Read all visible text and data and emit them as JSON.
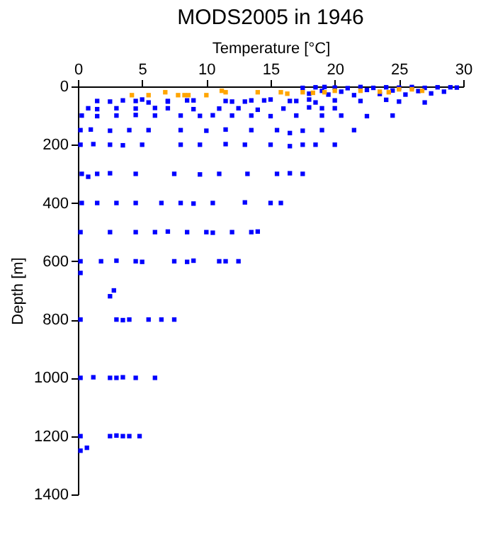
{
  "chart_data": {
    "type": "scatter",
    "title": "MODS2005 in 1946",
    "xlabel": "Temperature [°C]",
    "ylabel": "Depth [m]",
    "xlim": [
      0,
      30
    ],
    "xticks": [
      0,
      5,
      10,
      15,
      20,
      25,
      30
    ],
    "ylim": [
      1400,
      0
    ],
    "yticks": [
      0,
      200,
      400,
      600,
      800,
      1000,
      1200,
      1400
    ],
    "grid": false,
    "legend": false,
    "marker": "square",
    "series": [
      {
        "color": "#0000ff",
        "x": [
          17.5,
          18.5,
          19.2,
          20,
          21,
          22,
          23,
          24,
          25,
          26,
          27,
          28,
          29,
          29.5,
          19,
          20.5,
          22.5,
          24.5,
          26.5,
          28.5,
          18,
          19.5,
          21.5,
          23.5,
          25.5,
          27.5,
          5,
          7,
          9,
          12,
          13.5,
          15,
          17,
          18,
          20,
          22,
          24,
          25,
          27,
          1.5,
          2.5,
          3.5,
          4.5,
          5.5,
          7,
          8.5,
          11.5,
          13,
          14.5,
          16.5,
          18.5,
          0.8,
          1.5,
          3,
          4.5,
          6,
          7,
          9,
          11,
          12.5,
          14,
          16,
          18,
          19,
          20,
          0.3,
          1.5,
          3,
          4.5,
          6,
          8,
          9.5,
          10.5,
          12,
          13.5,
          15,
          17,
          19,
          20.5,
          22.5,
          24.5,
          0.2,
          1,
          2.5,
          4,
          5.5,
          8,
          10,
          11.5,
          13.5,
          15.5,
          16.5,
          17.5,
          19,
          21.5,
          0.2,
          1.2,
          2.5,
          3.5,
          5,
          8,
          9.5,
          11.5,
          13,
          15,
          16.5,
          17.5,
          18.5,
          20,
          0.3,
          0.8,
          1.5,
          2.5,
          4.5,
          7.5,
          9.5,
          11,
          13.2,
          15.5,
          16.5,
          17.5,
          0.3,
          1.5,
          3,
          4.5,
          6.5,
          8,
          9,
          10.5,
          13,
          15,
          15.8,
          0.2,
          2.5,
          4.5,
          6,
          7,
          8.5,
          10,
          10.5,
          12,
          13.5,
          14,
          0.2,
          1.8,
          3,
          4.5,
          5,
          7.5,
          8.5,
          9,
          11,
          11.5,
          12.5,
          0.2,
          2.5,
          2.8,
          0.2,
          3,
          3.5,
          4,
          5.5,
          6.5,
          7.5,
          0.2,
          1.2,
          2.5,
          3,
          3.5,
          4.5,
          6,
          0.2,
          0.7,
          2.5,
          3,
          3.5,
          4,
          4.8,
          0.2
        ],
        "values": [
          5,
          3,
          2,
          4,
          6,
          2,
          5,
          3,
          4,
          2,
          5,
          3,
          3,
          4,
          15,
          18,
          12,
          14,
          16,
          18,
          25,
          28,
          30,
          26,
          28,
          24,
          45,
          50,
          48,
          52,
          48,
          45,
          50,
          45,
          48,
          50,
          46,
          52,
          55,
          50,
          52,
          48,
          50,
          55,
          52,
          48,
          50,
          52,
          48,
          50,
          55,
          75,
          78,
          75,
          76,
          74,
          75,
          78,
          76,
          75,
          80,
          76,
          72,
          75,
          75,
          100,
          102,
          100,
          98,
          100,
          100,
          101,
          99,
          100,
          100,
          102,
          100,
          100,
          100,
          102,
          100,
          150,
          148,
          152,
          150,
          150,
          150,
          152,
          148,
          150,
          150,
          160,
          152,
          150,
          150,
          200,
          198,
          200,
          202,
          200,
          200,
          200,
          198,
          200,
          200,
          205,
          200,
          200,
          200,
          300,
          310,
          300,
          298,
          300,
          300,
          302,
          300,
          300,
          300,
          298,
          300,
          400,
          400,
          400,
          400,
          400,
          400,
          402,
          400,
          398,
          400,
          400,
          500,
          500,
          500,
          500,
          498,
          500,
          500,
          502,
          500,
          500,
          498,
          600,
          600,
          598,
          600,
          602,
          600,
          602,
          598,
          600,
          600,
          600,
          640,
          720,
          700,
          800,
          800,
          802,
          800,
          800,
          800,
          800,
          1000,
          998,
          1000,
          1000,
          998,
          1000,
          1000,
          1200,
          1240,
          1200,
          1198,
          1200,
          1200,
          1200,
          1250
        ]
      },
      {
        "color": "#ffa500",
        "x": [
          4.2,
          5.5,
          6.8,
          7.8,
          8.3,
          8.6,
          10,
          11.2,
          11.5,
          14,
          15.8,
          16.3,
          17.5,
          18.3,
          19.2,
          20,
          22,
          23.5,
          24.2,
          25,
          26,
          26.8
        ],
        "values": [
          30,
          30,
          20,
          30,
          30,
          30,
          30,
          15,
          20,
          20,
          20,
          25,
          20,
          22,
          20,
          15,
          15,
          18,
          20,
          10,
          10,
          15
        ]
      }
    ]
  }
}
